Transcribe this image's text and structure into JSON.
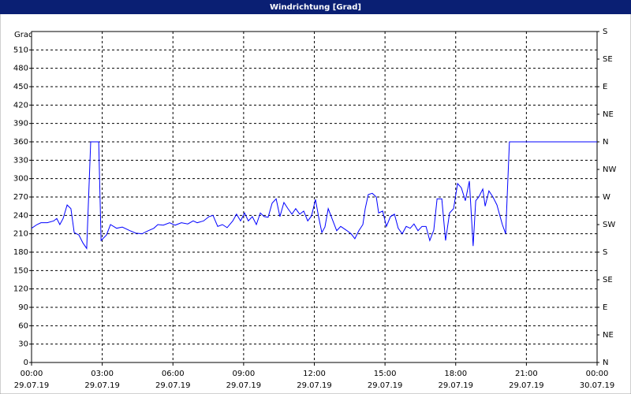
{
  "chart_data": {
    "type": "line",
    "title": "Windrichtung [Grad]",
    "y_label": "Grad",
    "xlim": [
      0,
      24
    ],
    "xticks": [
      {
        "value": 0,
        "label": "00:00"
      },
      {
        "value": 3,
        "label": "03:00"
      },
      {
        "value": 6,
        "label": "06:00"
      },
      {
        "value": 9,
        "label": "09:00"
      },
      {
        "value": 12,
        "label": "12:00"
      },
      {
        "value": 15,
        "label": "15:00"
      },
      {
        "value": 18,
        "label": "18:00"
      },
      {
        "value": 21,
        "label": "21:00"
      },
      {
        "value": 24,
        "label": "00:00"
      }
    ],
    "xtick_dates": [
      "29.07.19",
      "29.07.19",
      "29.07.19",
      "29.07.19",
      "29.07.19",
      "29.07.19",
      "29.07.19",
      "29.07.19",
      "30.07.19"
    ],
    "ylim": [
      0,
      540
    ],
    "yticks": [
      0,
      30,
      60,
      90,
      120,
      150,
      180,
      210,
      240,
      270,
      300,
      330,
      360,
      390,
      420,
      450,
      480,
      510
    ],
    "y2lim": [
      0,
      540
    ],
    "y2ticks": [
      {
        "value": 0,
        "label": "N"
      },
      {
        "value": 45,
        "label": "NE"
      },
      {
        "value": 90,
        "label": "E"
      },
      {
        "value": 135,
        "label": "SE"
      },
      {
        "value": 180,
        "label": "S"
      },
      {
        "value": 225,
        "label": "SW"
      },
      {
        "value": 270,
        "label": "W"
      },
      {
        "value": 315,
        "label": "NW"
      },
      {
        "value": 360,
        "label": "N"
      },
      {
        "value": 405,
        "label": "NE"
      },
      {
        "value": 450,
        "label": "E"
      },
      {
        "value": 495,
        "label": "SE"
      },
      {
        "value": 540,
        "label": "S"
      }
    ],
    "grid": true,
    "series": [
      {
        "color": "#0000ff",
        "x": [
          0,
          0.23,
          0.4,
          0.67,
          0.94,
          1.07,
          1.2,
          1.34,
          1.51,
          1.67,
          1.81,
          2.01,
          2.18,
          2.34,
          2.51,
          2.85,
          2.95,
          3.18,
          3.35,
          3.61,
          3.85,
          4.18,
          4.42,
          4.69,
          4.95,
          5.19,
          5.36,
          5.59,
          5.86,
          6.09,
          6.36,
          6.63,
          6.86,
          7.03,
          7.3,
          7.53,
          7.7,
          7.9,
          8.1,
          8.3,
          8.54,
          8.7,
          8.87,
          9.04,
          9.2,
          9.37,
          9.54,
          9.71,
          9.87,
          10.04,
          10.21,
          10.38,
          10.54,
          10.71,
          10.88,
          11.05,
          11.21,
          11.38,
          11.55,
          11.72,
          11.88,
          12.05,
          12.18,
          12.32,
          12.45,
          12.59,
          12.72,
          12.95,
          13.12,
          13.39,
          13.56,
          13.72,
          13.89,
          14.06,
          14.16,
          14.29,
          14.46,
          14.63,
          14.73,
          14.9,
          15.06,
          15.23,
          15.4,
          15.56,
          15.73,
          15.9,
          16.07,
          16.23,
          16.4,
          16.57,
          16.74,
          16.9,
          17.07,
          17.21,
          17.41,
          17.57,
          17.74,
          17.91,
          18.08,
          18.24,
          18.41,
          18.58,
          18.74,
          18.85,
          18.98,
          19.15,
          19.25,
          19.41,
          19.58,
          19.75,
          19.98,
          20.12,
          20.28,
          24
        ],
        "values": [
          219,
          225,
          228,
          228,
          231,
          235,
          225,
          235,
          257,
          251,
          212,
          208,
          195,
          186,
          360,
          360,
          199,
          208,
          225,
          219,
          221,
          215,
          211,
          210,
          215,
          219,
          225,
          224,
          228,
          224,
          228,
          226,
          231,
          228,
          231,
          238,
          240,
          222,
          225,
          220,
          231,
          242,
          231,
          244,
          231,
          238,
          225,
          244,
          238,
          237,
          260,
          267,
          238,
          261,
          251,
          242,
          251,
          242,
          247,
          231,
          239,
          266,
          238,
          212,
          221,
          251,
          238,
          215,
          222,
          215,
          210,
          202,
          215,
          225,
          251,
          274,
          276,
          270,
          244,
          247,
          222,
          238,
          242,
          219,
          210,
          222,
          219,
          226,
          215,
          222,
          222,
          199,
          216,
          267,
          267,
          199,
          244,
          251,
          292,
          285,
          264,
          296,
          190,
          264,
          270,
          283,
          255,
          280,
          270,
          257,
          225,
          210,
          360,
          360
        ]
      }
    ]
  }
}
